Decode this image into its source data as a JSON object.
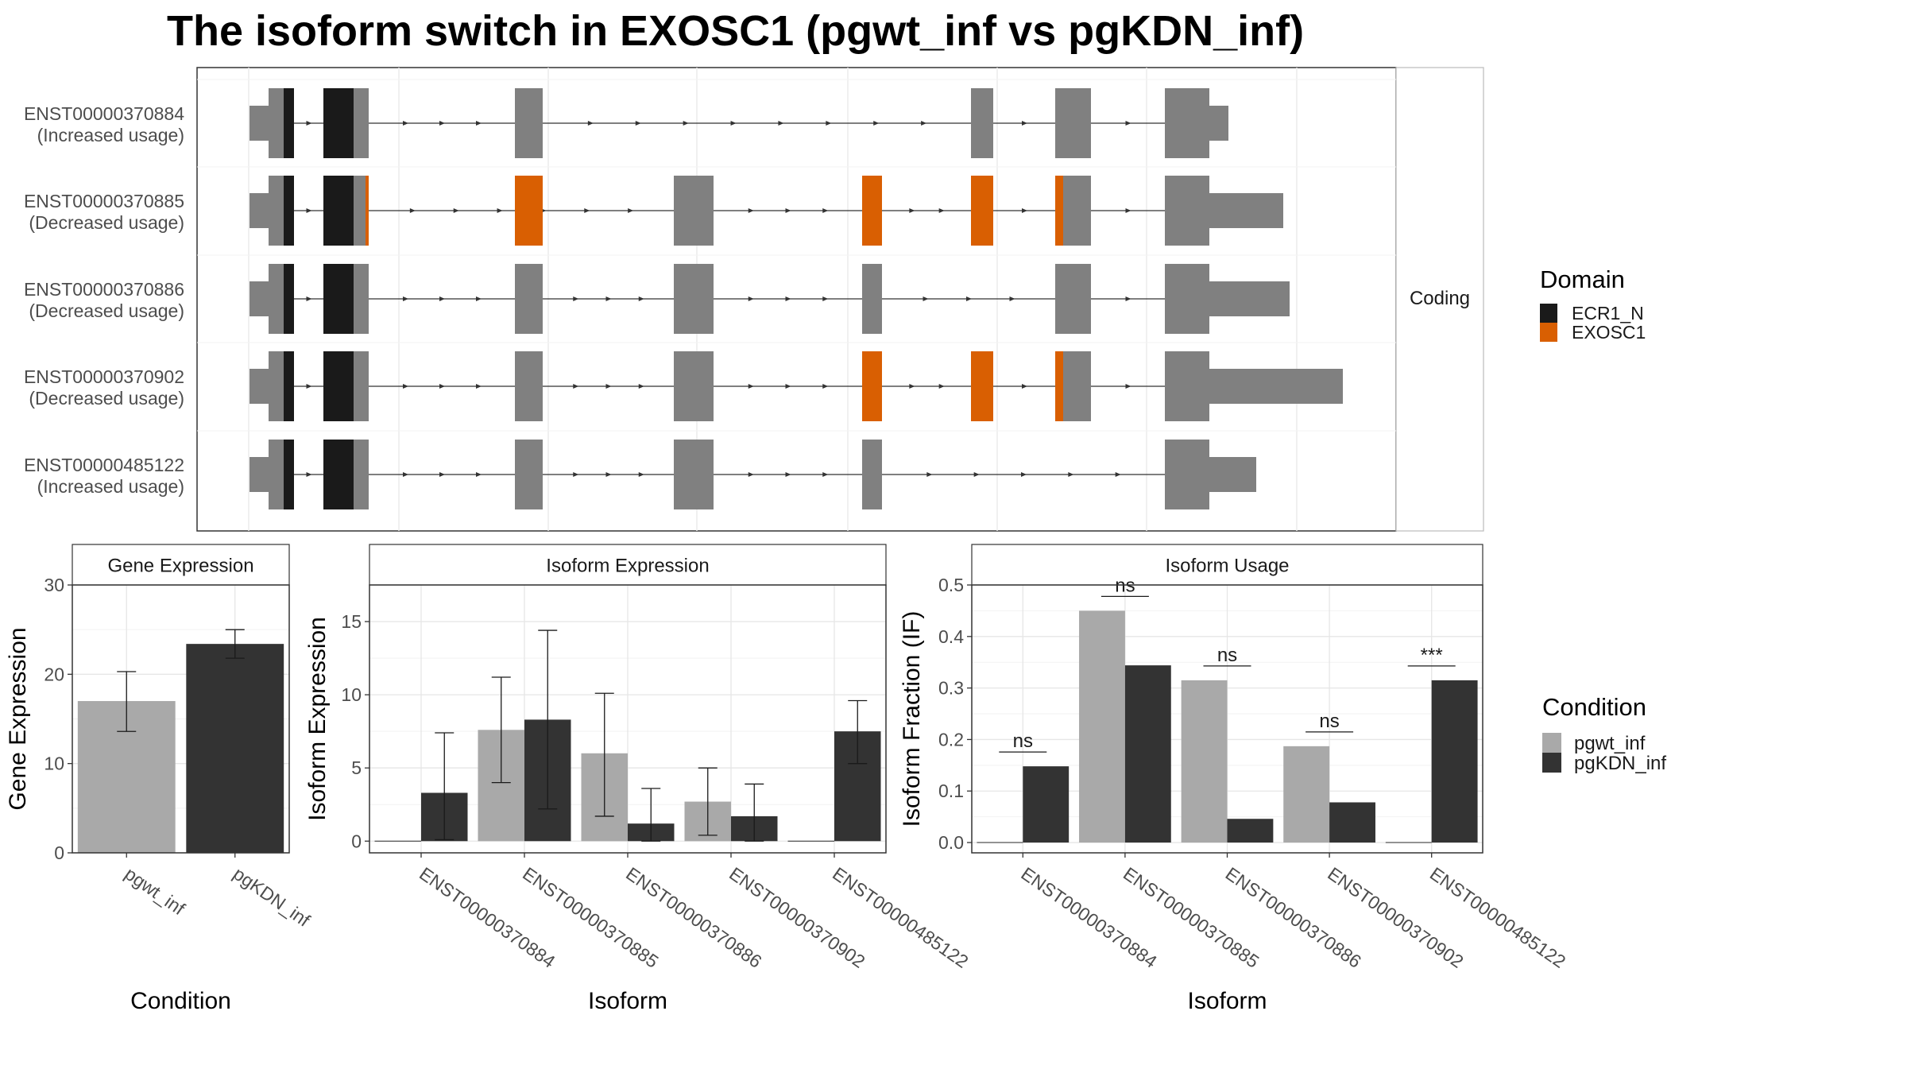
{
  "title": "The isoform switch in EXOSC1 (pgwt_inf vs pgKDN_inf)",
  "colors": {
    "ECR1_N": "#1a1a1a",
    "EXOSC1": "#d95f02",
    "exon": "#808080",
    "pgwt_inf": "#a9a9a9",
    "pgKDN_inf": "#333333"
  },
  "structure": {
    "facet_label": "Coding",
    "transcripts": [
      {
        "id": "ENST00000370884",
        "usage": "(Increased usage)"
      },
      {
        "id": "ENST00000370885",
        "usage": "(Decreased usage)"
      },
      {
        "id": "ENST00000370886",
        "usage": "(Decreased usage)"
      },
      {
        "id": "ENST00000370902",
        "usage": "(Decreased usage)"
      },
      {
        "id": "ENST00000485122",
        "usage": "(Increased usage)"
      }
    ]
  },
  "legend_domain": {
    "title": "Domain",
    "items": [
      {
        "label": "ECR1_N",
        "color_key": "ECR1_N"
      },
      {
        "label": "EXOSC1",
        "color_key": "EXOSC1"
      }
    ]
  },
  "legend_condition": {
    "title": "Condition",
    "items": [
      {
        "label": "pgwt_inf",
        "color_key": "pgwt_inf"
      },
      {
        "label": "pgKDN_inf",
        "color_key": "pgKDN_inf"
      }
    ]
  },
  "chart_data": [
    {
      "type": "bar",
      "panel": "gene",
      "strip": "Gene Expression",
      "xlabel": "Condition",
      "ylabel": "Gene Expression",
      "ylim": [
        0,
        30
      ],
      "yticks": [
        0,
        10,
        20,
        30
      ],
      "categories": [
        "pgwt_inf",
        "pgKDN_inf"
      ],
      "values": [
        17,
        23.4
      ],
      "err_low": [
        13.6,
        21.8
      ],
      "err_high": [
        20.3,
        25.0
      ]
    },
    {
      "type": "bar",
      "panel": "isoexp",
      "strip": "Isoform Expression",
      "xlabel": "Isoform",
      "ylabel": "Isoform Expression",
      "ylim": [
        -0.8,
        17.5
      ],
      "yticks": [
        0,
        5,
        10,
        15
      ],
      "categories": [
        "ENST00000370884",
        "ENST00000370885",
        "ENST00000370886",
        "ENST00000370902",
        "ENST00000485122"
      ],
      "series": [
        {
          "name": "pgwt_inf",
          "values": [
            0,
            7.6,
            6.0,
            2.7,
            0
          ],
          "err_low": [
            0,
            4.0,
            1.7,
            0.4,
            0
          ],
          "err_high": [
            0,
            11.2,
            10.1,
            5.0,
            0
          ]
        },
        {
          "name": "pgKDN_inf",
          "values": [
            3.3,
            8.3,
            1.2,
            1.7,
            7.5
          ],
          "err_low": [
            0.1,
            2.2,
            0.0,
            0.0,
            5.3
          ],
          "err_high": [
            7.4,
            14.4,
            3.6,
            3.9,
            9.6
          ]
        }
      ]
    },
    {
      "type": "bar",
      "panel": "usage",
      "strip": "Isoform Usage",
      "xlabel": "Isoform",
      "ylabel": "Isoform Fraction (IF)",
      "ylim": [
        -0.02,
        0.5
      ],
      "yticks": [
        0.0,
        0.1,
        0.2,
        0.3,
        0.4,
        0.5
      ],
      "categories": [
        "ENST00000370884",
        "ENST00000370885",
        "ENST00000370886",
        "ENST00000370902",
        "ENST00000485122"
      ],
      "series": [
        {
          "name": "pgwt_inf",
          "values": [
            0,
            0.45,
            0.315,
            0.187,
            0
          ]
        },
        {
          "name": "pgKDN_inf",
          "values": [
            0.148,
            0.344,
            0.046,
            0.078,
            0.315
          ]
        }
      ],
      "significance": [
        "ns",
        "ns",
        "ns",
        "ns",
        "***"
      ]
    }
  ]
}
